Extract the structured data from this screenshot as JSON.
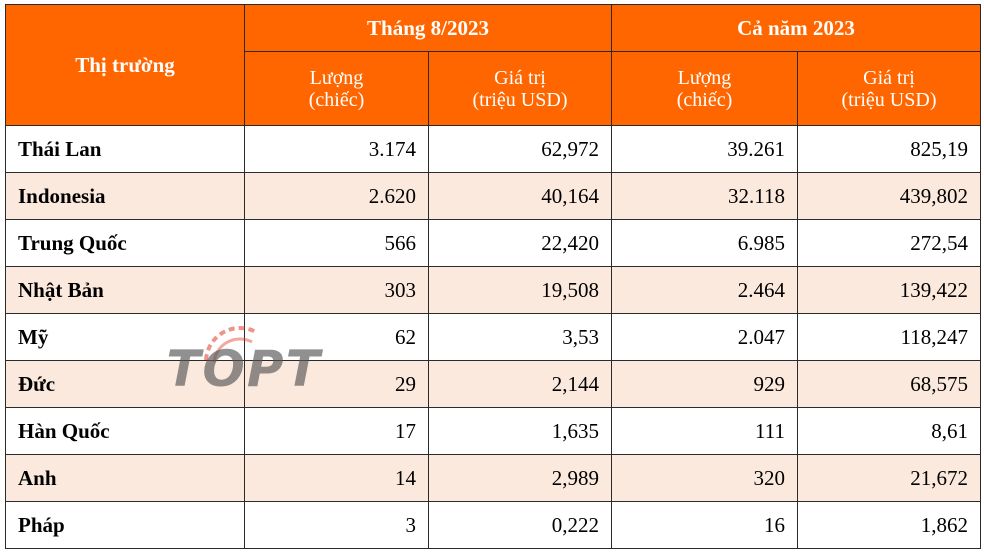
{
  "header": {
    "market_label": "Thị trường",
    "group_month": "Tháng 8/2023",
    "group_year": "Cả năm 2023",
    "qty_line1": "Lượng",
    "qty_line2": "(chiếc)",
    "val_line1": "Giá trị",
    "val_line2": "(triệu USD)"
  },
  "rows": [
    {
      "market": "Thái Lan",
      "m_qty": "3.174",
      "m_val": "62,972",
      "y_qty": "39.261",
      "y_val": "825,19"
    },
    {
      "market": "Indonesia",
      "m_qty": "2.620",
      "m_val": "40,164",
      "y_qty": "32.118",
      "y_val": "439,802"
    },
    {
      "market": "Trung Quốc",
      "m_qty": "566",
      "m_val": "22,420",
      "y_qty": "6.985",
      "y_val": "272,54"
    },
    {
      "market": "Nhật Bản",
      "m_qty": "303",
      "m_val": "19,508",
      "y_qty": "2.464",
      "y_val": "139,422"
    },
    {
      "market": "Mỹ",
      "m_qty": "62",
      "m_val": "3,53",
      "y_qty": "2.047",
      "y_val": "118,247"
    },
    {
      "market": "Đức",
      "m_qty": "29",
      "m_val": "2,144",
      "y_qty": "929",
      "y_val": "68,575"
    },
    {
      "market": "Hàn Quốc",
      "m_qty": "17",
      "m_val": "1,635",
      "y_qty": "111",
      "y_val": "8,61"
    },
    {
      "market": "Anh",
      "m_qty": "14",
      "m_val": "2,989",
      "y_qty": "320",
      "y_val": "21,672"
    },
    {
      "market": "Pháp",
      "m_qty": "3",
      "m_val": "0,222",
      "y_qty": "16",
      "y_val": "1,862"
    }
  ],
  "watermark": {
    "text": "TOPT",
    "color": "#555555",
    "accent": "#e23b2e"
  }
}
